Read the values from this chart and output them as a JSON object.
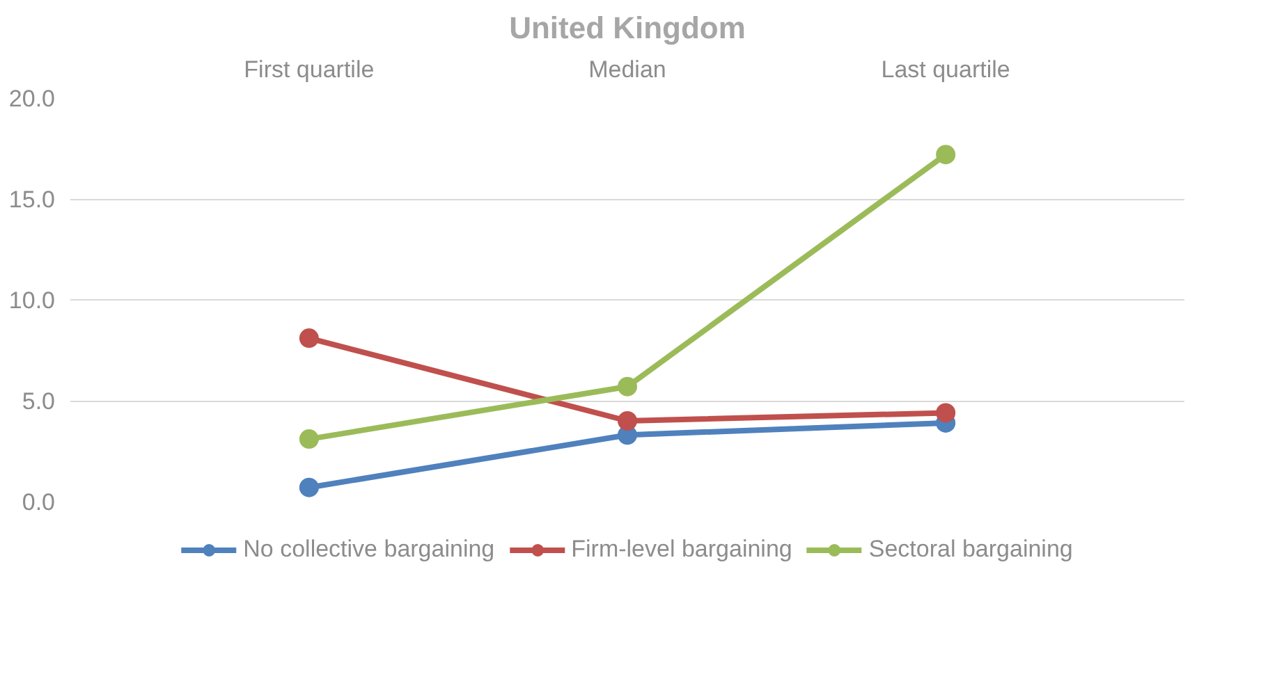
{
  "chart_data": {
    "type": "line",
    "title": "United Kingdom",
    "categories": [
      "First quartile",
      "Median",
      "Last quartile"
    ],
    "series": [
      {
        "name": "No collective bargaining",
        "color": "#4f81bd",
        "values": [
          0.7,
          3.3,
          3.9
        ]
      },
      {
        "name": "Firm-level bargaining",
        "color": "#c0504d",
        "values": [
          8.1,
          4.0,
          4.4
        ]
      },
      {
        "name": "Sectoral bargaining",
        "color": "#9bbb59",
        "values": [
          3.1,
          5.7,
          17.2
        ]
      }
    ],
    "ylim": [
      0,
      20
    ],
    "yticks": [
      {
        "value": 0,
        "label": "0.0"
      },
      {
        "value": 5,
        "label": "5.0"
      },
      {
        "value": 10,
        "label": "10.0"
      },
      {
        "value": 15,
        "label": "15.0"
      },
      {
        "value": 20,
        "label": "20.0"
      }
    ],
    "grid": "y",
    "legend": "bottom",
    "marker": "circle",
    "line_style": "solid"
  }
}
